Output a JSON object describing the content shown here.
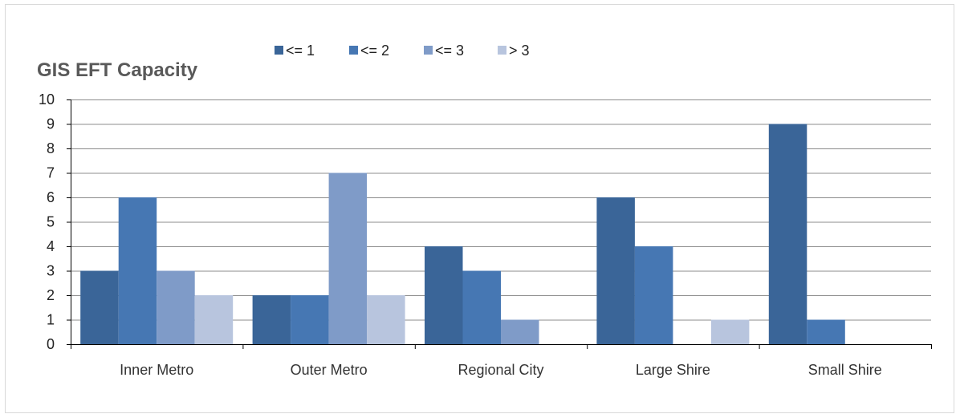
{
  "chart_data": {
    "type": "bar",
    "title": "GIS EFT Capacity",
    "xlabel": "",
    "ylabel": "",
    "ylim": [
      0,
      10
    ],
    "yticks": [
      "0",
      "1",
      "2",
      "3",
      "4",
      "5",
      "6",
      "7",
      "8",
      "9",
      "10"
    ],
    "grid": true,
    "legend_position": "top",
    "categories": [
      "Inner Metro",
      "Outer Metro",
      "Regional City",
      "Large Shire",
      "Small Shire"
    ],
    "series": [
      {
        "name": "<= 1",
        "color": "#3a6598",
        "values": [
          3,
          2,
          4,
          6,
          9
        ]
      },
      {
        "name": "<= 2",
        "color": "#4677b3",
        "values": [
          6,
          2,
          3,
          4,
          1
        ]
      },
      {
        "name": "<= 3",
        "color": "#7f9bc8",
        "values": [
          3,
          7,
          1,
          0,
          0
        ]
      },
      {
        "name": "> 3",
        "color": "#b8c5de",
        "values": [
          2,
          2,
          0,
          1,
          0
        ]
      }
    ]
  }
}
